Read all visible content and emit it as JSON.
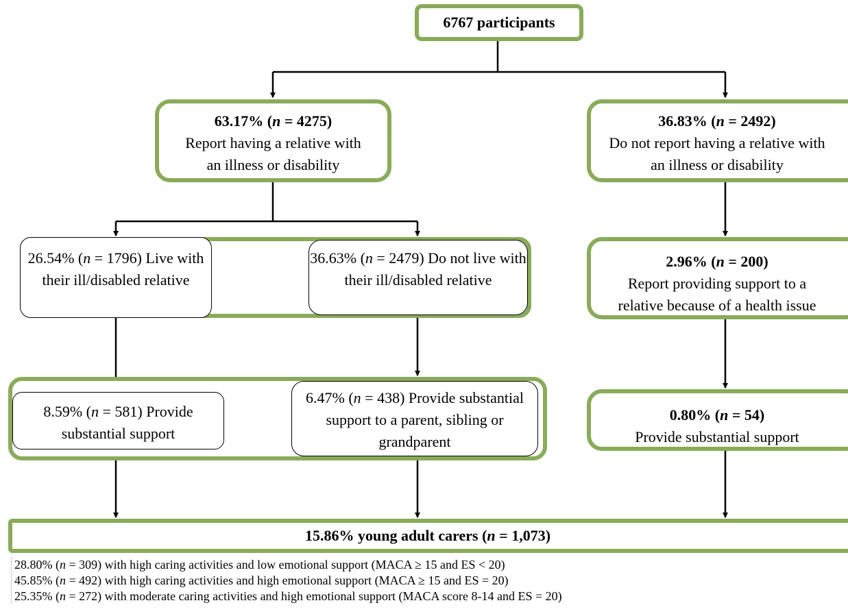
{
  "root": {
    "label": "6767 participants"
  },
  "level1": [
    {
      "pct": "63.17%",
      "n": "4275",
      "line1": "Report having a relative with",
      "line2": "an illness or disability"
    },
    {
      "pct": "36.83%",
      "n": "2492",
      "line1": "Do not report having a relative with",
      "line2": "an illness or disability"
    }
  ],
  "level2": [
    {
      "pct": "26.54%",
      "n": "1796",
      "line1": "Live with their",
      "line2": "ill/disabled relative"
    },
    {
      "pct": "36.63%",
      "n": "2479",
      "line1": "Do not live with their",
      "line2": "ill/disabled relative"
    },
    {
      "pct": "2.96%",
      "n": "200",
      "line1": "Report providing support to a",
      "line2": "relative because of a health issue"
    }
  ],
  "level3": [
    {
      "pct": "8.59%",
      "n": "581",
      "line1": "Provide substantial support",
      "line2": ""
    },
    {
      "pct": "6.47%",
      "n": "438",
      "line1": "Provide substantial support to a",
      "line2": "parent, sibling or grandparent"
    },
    {
      "pct": "0.80%",
      "n": "54",
      "line1": "Provide substantial support",
      "line2": ""
    }
  ],
  "result": {
    "pre": "15.86% young adult carers (",
    "n": "1,073",
    "post": ")"
  },
  "notes": [
    {
      "pre": "28.80% (",
      "n": "309",
      "post": ") with high caring activities and low emotional support (MACA ≥ 15 and ES < 20)"
    },
    {
      "pre": "45.85% (",
      "n": "492",
      "post": ") with high caring activities and high emotional support (MACA ≥ 15 and ES = 20)"
    },
    {
      "pre": "25.35% (",
      "n": "272",
      "post": ") with moderate caring activities and high emotional support (MACA score 8-14 and ES = 20)"
    }
  ],
  "n_symbol": "n",
  "colors": {
    "box_border": "#8aab5a",
    "lines": "#000000"
  }
}
